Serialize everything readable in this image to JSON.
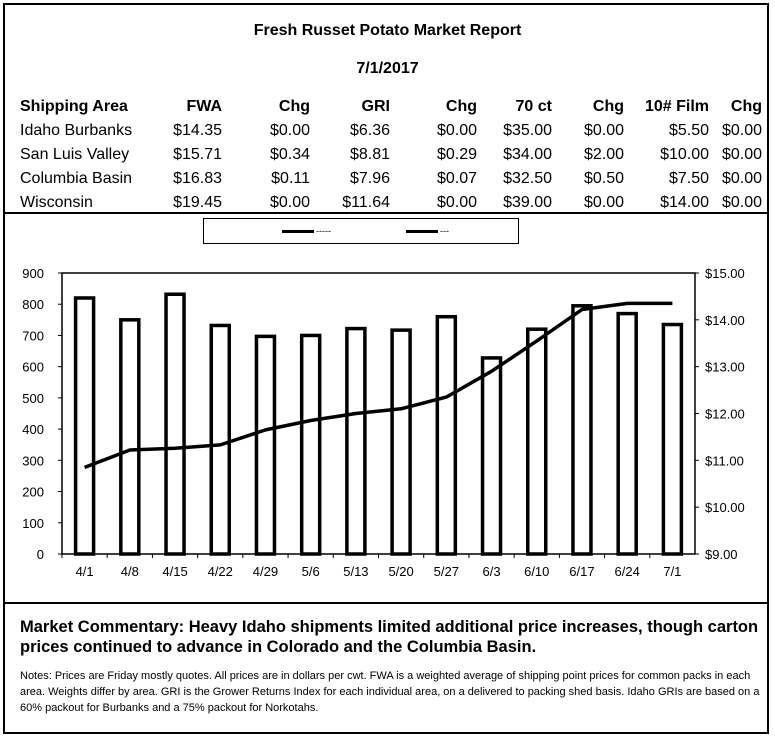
{
  "report": {
    "title": "Fresh Russet Potato Market Report",
    "date": "7/1/2017"
  },
  "table": {
    "headers": [
      "Shipping Area",
      "FWA",
      "Chg",
      "GRI",
      "Chg",
      "70 ct",
      "Chg",
      "10# Film",
      "Chg"
    ],
    "rows": [
      [
        "Idaho Burbanks",
        "$14.35",
        "$0.00",
        "$6.36",
        "$0.00",
        "$35.00",
        "$0.00",
        "$5.50",
        "$0.00"
      ],
      [
        "San Luis Valley",
        "$15.71",
        "$0.34",
        "$8.81",
        "$0.29",
        "$34.00",
        "$2.00",
        "$10.00",
        "$0.00"
      ],
      [
        "Columbia Basin",
        "$16.83",
        "$0.11",
        "$7.96",
        "$0.07",
        "$32.50",
        "$0.50",
        "$7.50",
        "$0.00"
      ],
      [
        "Wisconsin",
        "$19.45",
        "$0.00",
        "$11.64",
        "$0.00",
        "$39.00",
        "$0.00",
        "$14.00",
        "$0.00"
      ]
    ]
  },
  "legend": {
    "items": [
      "-----",
      "---"
    ]
  },
  "chart_data": {
    "type": "bar",
    "categories": [
      "4/1",
      "4/8",
      "4/15",
      "4/22",
      "4/29",
      "5/6",
      "5/13",
      "5/20",
      "5/27",
      "6/3",
      "6/10",
      "6/17",
      "6/24",
      "7/1"
    ],
    "series": [
      {
        "type": "bar",
        "axis": "left",
        "values": [
          820,
          750,
          832,
          732,
          697,
          700,
          722,
          717,
          760,
          628,
          720,
          795,
          770,
          735
        ]
      },
      {
        "type": "line",
        "axis": "right",
        "values": [
          10.85,
          11.22,
          11.26,
          11.33,
          11.65,
          11.85,
          12.0,
          12.1,
          12.35,
          12.9,
          13.55,
          14.22,
          14.35,
          14.35
        ]
      }
    ],
    "ylim_left": [
      0,
      900
    ],
    "yticks_left": [
      0,
      100,
      200,
      300,
      400,
      500,
      600,
      700,
      800,
      900
    ],
    "ylim_right": [
      9.0,
      15.0
    ],
    "yticks_right": [
      "$9.00",
      "$10.00",
      "$11.00",
      "$12.00",
      "$13.00",
      "$14.00",
      "$15.00"
    ],
    "grid": false,
    "legend": "top"
  },
  "commentary": "Market Commentary: Heavy Idaho shipments limited additional price increases, though carton prices continued to advance in Colorado and the Columbia Basin.",
  "notes": "Notes: Prices are Friday mostly quotes. All prices are in dollars per cwt. FWA is a weighted average of shipping point prices for  common packs in each area. Weights differ by area. GRI is the Grower Returns Index for each individual area, on a delivered to packing shed basis. Idaho GRIs are based on a 60% packout for Burbanks and a 75% packout for Norkotahs."
}
